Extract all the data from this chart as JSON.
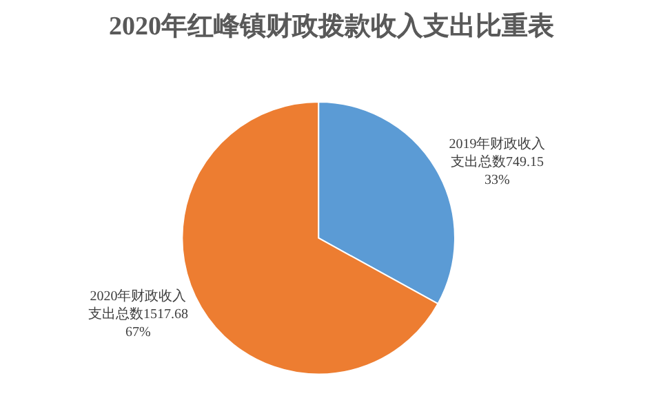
{
  "chart_data": {
    "type": "pie",
    "title": "2020年红峰镇财政拨款收入支出比重表",
    "categories": [
      "2019年财政收入支出总数749.15",
      "2020年财政收入支出总数1517.68"
    ],
    "values": [
      33,
      67
    ],
    "colors": [
      "#5b9bd5",
      "#ed7d31"
    ],
    "value_labels": [
      "33%",
      "67%"
    ],
    "legend": false
  }
}
